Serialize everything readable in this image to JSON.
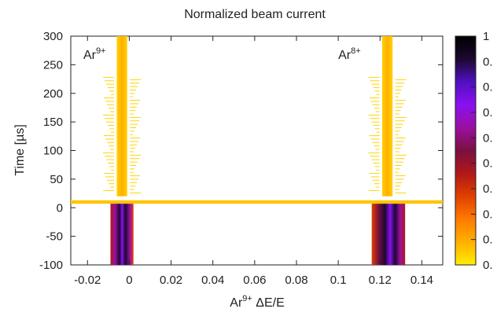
{
  "chart_data": {
    "type": "heatmap",
    "title": "Normalized beam current",
    "ylabel": "Time [µs]",
    "xlabel": {
      "base": "Ar",
      "sup": "9+",
      "rest": " ΔE/E"
    },
    "xlim": [
      -0.028,
      0.15
    ],
    "ylim": [
      -100,
      300
    ],
    "xticks": [
      -0.02,
      0,
      0.02,
      0.04,
      0.06,
      0.08,
      0.1,
      0.12,
      0.14
    ],
    "xtick_labels": [
      "-0.02",
      "0",
      "0.02",
      "0.04",
      "0.06",
      "0.08",
      "0.1",
      "0.12",
      "0.14"
    ],
    "yticks": [
      -100,
      -50,
      0,
      50,
      100,
      150,
      200,
      250,
      300
    ],
    "ytick_labels": [
      "-100",
      "-50",
      "0",
      "50",
      "100",
      "150",
      "200",
      "250",
      "300"
    ],
    "colorbar": {
      "range": [
        0,
        1
      ],
      "tick_labels": [
        "1",
        "0.",
        "0.",
        "0.",
        "0.",
        "0.",
        "0.",
        "0.",
        "0.",
        "0."
      ],
      "colors": [
        "#ffee00",
        "#ffb000",
        "#ff7a00",
        "#e04000",
        "#b01818",
        "#7a1040",
        "#9a10a0",
        "#8a10f0",
        "#5010c0",
        "#1c0830",
        "#000000"
      ]
    },
    "annotations": [
      {
        "base": "Ar",
        "sup": "9+",
        "x": -0.022,
        "y": 260
      },
      {
        "base": "Ar",
        "sup": "8+",
        "x": 0.1,
        "y": 260
      }
    ],
    "regions": [
      {
        "x0": -0.028,
        "x1": 0.15,
        "y0": 7,
        "y1": 13,
        "value": 0.1
      },
      {
        "x0": -0.006,
        "x1": -0.001,
        "y0": 20,
        "y1": 300,
        "value": 0.15
      },
      {
        "x0": 0.121,
        "x1": 0.126,
        "y0": 20,
        "y1": 300,
        "value": 0.15
      },
      {
        "x0": -0.009,
        "x1": 0.002,
        "y0": -100,
        "y1": 7,
        "value": 0.55
      },
      {
        "x0": -0.006,
        "x1": -0.001,
        "y0": -100,
        "y1": 7,
        "value": 0.85
      },
      {
        "x0": 0.116,
        "x1": 0.132,
        "y0": -100,
        "y1": 7,
        "value": 0.55
      },
      {
        "x0": 0.121,
        "x1": 0.128,
        "y0": -100,
        "y1": 7,
        "value": 0.85
      }
    ]
  }
}
